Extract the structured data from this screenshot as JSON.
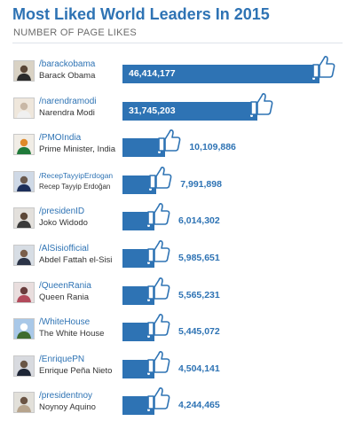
{
  "title": "Most Liked World Leaders In 2015",
  "subtitle": "NUMBER OF PAGE LIKES",
  "colors": {
    "title": "#2e73b4",
    "bar": "#2e73b4",
    "value_outside": "#2e73b4",
    "value_inside": "#ffffff"
  },
  "icon": "thumbs-up-icon",
  "chart_data": {
    "type": "bar",
    "orientation": "horizontal",
    "title": "Most Liked World Leaders In 2015",
    "subtitle": "NUMBER OF PAGE LIKES",
    "xlim": [
      0,
      46414177
    ],
    "grid": false,
    "categories": [
      "Barack Obama",
      "Narendra Modi",
      "Prime Minister, India",
      "Recep Tayyip Erdoğan",
      "Joko Widodo",
      "Abdel Fattah el-Sisi",
      "Queen Rania",
      "The White House",
      "Enrique Peña Nieto",
      "Noynoy Aquino"
    ],
    "values": [
      46414177,
      31745203,
      10109886,
      7991898,
      6014302,
      5985651,
      5565231,
      5445072,
      4504141,
      4244465
    ],
    "rows": [
      {
        "handle": "/barackobama",
        "name": "Barack Obama",
        "value": 46414177,
        "label": "46,414,177"
      },
      {
        "handle": "/narendramodi",
        "name": "Narendra Modi",
        "value": 31745203,
        "label": "31,745,203"
      },
      {
        "handle": "/PMOIndia",
        "name": "Prime Minister, India",
        "value": 10109886,
        "label": "10,109,886"
      },
      {
        "handle": "/RecepTayyipErdogan",
        "name": "Recep Tayyip Erdoğan",
        "value": 7991898,
        "label": "7,991,898"
      },
      {
        "handle": "/presidenID",
        "name": "Joko Widodo",
        "value": 6014302,
        "label": "6,014,302"
      },
      {
        "handle": "/AlSisiofficial",
        "name": "Abdel Fattah el-Sisi",
        "value": 5985651,
        "label": "5,985,651"
      },
      {
        "handle": "/QueenRania",
        "name": "Queen Rania",
        "value": 5565231,
        "label": "5,565,231"
      },
      {
        "handle": "/WhiteHouse",
        "name": "The White House",
        "value": 5445072,
        "label": "5,445,072"
      },
      {
        "handle": "/EnriquePN",
        "name": "Enrique Peña Nieto",
        "value": 4504141,
        "label": "4,504,141"
      },
      {
        "handle": "/presidentnoy",
        "name": "Noynoy Aquino",
        "value": 4244465,
        "label": "4,244,465"
      }
    ]
  }
}
